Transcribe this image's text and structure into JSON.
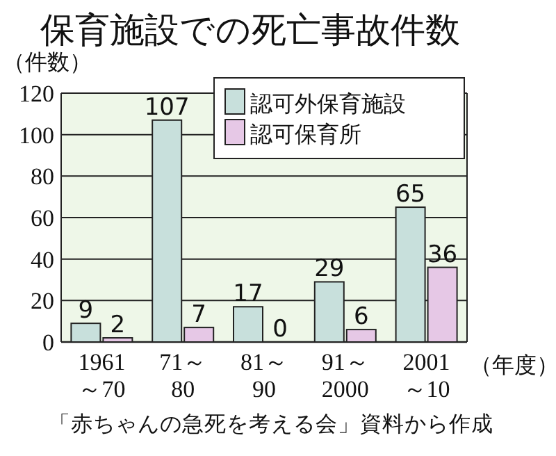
{
  "chart_data": {
    "type": "bar",
    "title": "保育施設での死亡事故件数",
    "ylabel": "（件数）",
    "xlabel": "（年度）",
    "categories": [
      "1961\n～70",
      "71～\n80",
      "81～\n90",
      "91～\n2000",
      "2001\n～10"
    ],
    "series": [
      {
        "name": "認可外保育施設",
        "color": "#c8e0dc",
        "values": [
          9,
          107,
          17,
          29,
          65
        ]
      },
      {
        "name": "認可保育所",
        "color": "#e6c8e6",
        "values": [
          2,
          7,
          0,
          6,
          36
        ]
      }
    ],
    "ylim": [
      0,
      120
    ],
    "yticks": [
      0,
      20,
      40,
      60,
      80,
      100,
      120
    ],
    "grid": "y",
    "legend": "top right",
    "data_labels": true,
    "annotations": [
      "「赤ちゃんの急死を考える会」資料から作成"
    ]
  }
}
